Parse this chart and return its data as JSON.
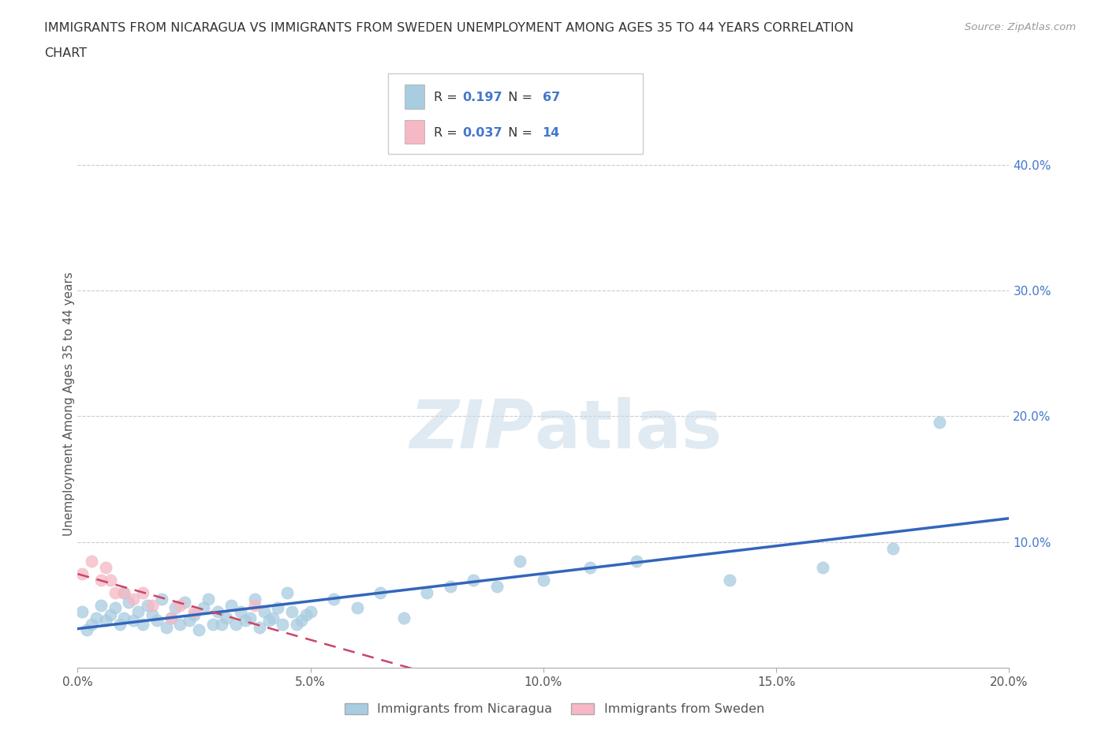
{
  "title_line1": "IMMIGRANTS FROM NICARAGUA VS IMMIGRANTS FROM SWEDEN UNEMPLOYMENT AMONG AGES 35 TO 44 YEARS CORRELATION",
  "title_line2": "CHART",
  "source": "Source: ZipAtlas.com",
  "ylabel": "Unemployment Among Ages 35 to 44 years",
  "xlim": [
    0.0,
    0.2
  ],
  "ylim": [
    0.0,
    0.42
  ],
  "xticks": [
    0.0,
    0.05,
    0.1,
    0.15,
    0.2
  ],
  "xtick_labels": [
    "0.0%",
    "5.0%",
    "10.0%",
    "15.0%",
    "20.0%"
  ],
  "yticks": [
    0.1,
    0.2,
    0.3,
    0.4
  ],
  "ytick_labels": [
    "10.0%",
    "20.0%",
    "30.0%",
    "40.0%"
  ],
  "watermark_zip": "ZIP",
  "watermark_atlas": "atlas",
  "nicaragua_R": 0.197,
  "nicaragua_N": 67,
  "sweden_R": 0.037,
  "sweden_N": 14,
  "nicaragua_color": "#a8cce0",
  "sweden_color": "#f5b8c4",
  "nicaragua_line_color": "#3366bb",
  "sweden_line_color": "#cc4466",
  "legend_nicaragua_label": "Immigrants from Nicaragua",
  "legend_sweden_label": "Immigrants from Sweden",
  "nicaragua_x": [
    0.001,
    0.002,
    0.003,
    0.004,
    0.005,
    0.006,
    0.007,
    0.008,
    0.009,
    0.01,
    0.01,
    0.011,
    0.012,
    0.013,
    0.014,
    0.015,
    0.016,
    0.017,
    0.018,
    0.019,
    0.02,
    0.021,
    0.022,
    0.023,
    0.024,
    0.025,
    0.026,
    0.027,
    0.028,
    0.029,
    0.03,
    0.031,
    0.032,
    0.033,
    0.034,
    0.035,
    0.036,
    0.037,
    0.038,
    0.039,
    0.04,
    0.041,
    0.042,
    0.043,
    0.044,
    0.045,
    0.046,
    0.047,
    0.048,
    0.049,
    0.05,
    0.055,
    0.06,
    0.065,
    0.07,
    0.075,
    0.08,
    0.085,
    0.09,
    0.095,
    0.1,
    0.11,
    0.12,
    0.14,
    0.16,
    0.175,
    0.185
  ],
  "nicaragua_y": [
    0.045,
    0.03,
    0.035,
    0.04,
    0.05,
    0.038,
    0.042,
    0.048,
    0.035,
    0.06,
    0.04,
    0.052,
    0.038,
    0.045,
    0.035,
    0.05,
    0.042,
    0.038,
    0.055,
    0.032,
    0.04,
    0.048,
    0.035,
    0.052,
    0.038,
    0.042,
    0.03,
    0.048,
    0.055,
    0.035,
    0.045,
    0.035,
    0.04,
    0.05,
    0.035,
    0.045,
    0.038,
    0.04,
    0.055,
    0.032,
    0.045,
    0.038,
    0.04,
    0.048,
    0.035,
    0.06,
    0.045,
    0.035,
    0.038,
    0.042,
    0.045,
    0.055,
    0.048,
    0.06,
    0.04,
    0.06,
    0.065,
    0.07,
    0.065,
    0.085,
    0.07,
    0.08,
    0.085,
    0.07,
    0.08,
    0.095,
    0.195
  ],
  "sweden_x": [
    0.001,
    0.003,
    0.005,
    0.006,
    0.007,
    0.008,
    0.01,
    0.012,
    0.014,
    0.016,
    0.02,
    0.022,
    0.025,
    0.038
  ],
  "sweden_y": [
    0.075,
    0.085,
    0.07,
    0.08,
    0.07,
    0.06,
    0.06,
    0.055,
    0.06,
    0.05,
    0.04,
    0.05,
    0.045,
    0.05
  ],
  "background_color": "#ffffff",
  "grid_color": "#cccccc",
  "tick_color": "#4477cc",
  "label_color": "#555555"
}
